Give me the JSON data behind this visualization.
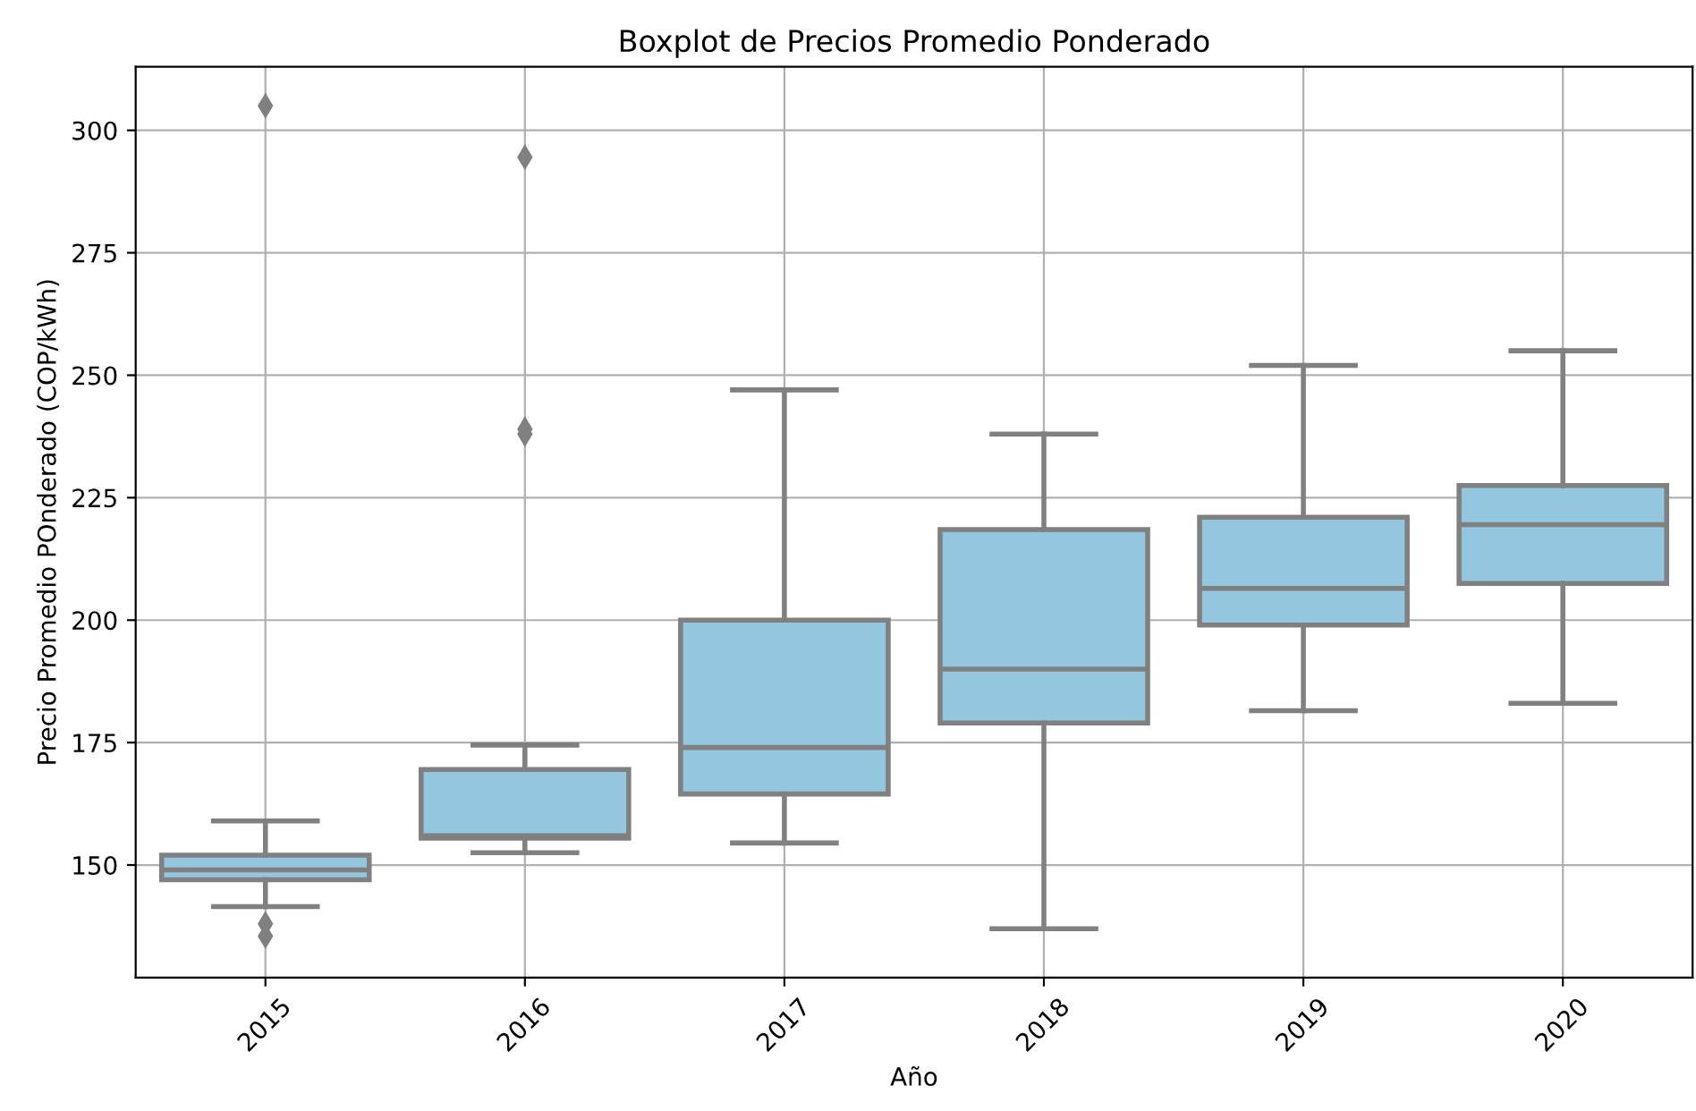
{
  "chart_data": {
    "type": "box",
    "title": "Boxplot de Precios Promedio Ponderado",
    "xlabel": "Año",
    "ylabel": "Precio Promedio POnderado (COP/kWh)",
    "categories": [
      "2015",
      "2016",
      "2017",
      "2018",
      "2019",
      "2020"
    ],
    "color": "#93c6df",
    "boxes": [
      {
        "low": 141.5,
        "q1": 147,
        "median": 149,
        "q3": 152,
        "high": 159,
        "outliers": [
          305,
          138,
          135.5
        ]
      },
      {
        "low": 152.5,
        "q1": 155.5,
        "median": 156,
        "q3": 169.5,
        "high": 174.5,
        "outliers": [
          294.5,
          239,
          238
        ]
      },
      {
        "low": 154.5,
        "q1": 164.5,
        "median": 174,
        "q3": 200,
        "high": 247
      },
      {
        "low": 137,
        "q1": 179,
        "median": 190,
        "q3": 218.5,
        "high": 238
      },
      {
        "low": 181.5,
        "q1": 199,
        "median": 206.5,
        "q3": 221,
        "high": 252
      },
      {
        "low": 183,
        "q1": 207.5,
        "median": 219.5,
        "q3": 227.5,
        "high": 255
      }
    ],
    "ylim": [
      127,
      313
    ],
    "yticks": [
      150,
      175,
      200,
      225,
      250,
      275,
      300
    ],
    "grid": true,
    "marker": "diamond"
  }
}
